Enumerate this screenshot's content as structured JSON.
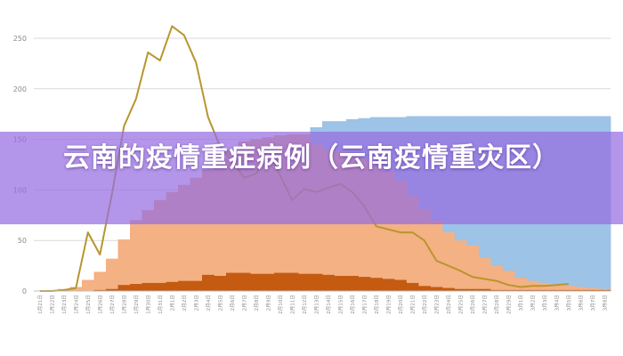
{
  "banner": {
    "title": "云南的疫情重症病例（云南疫情重灾区）"
  },
  "chart_data": {
    "type": "area",
    "title": "",
    "xlabel": "",
    "ylabel": "",
    "ylim": [
      0,
      250
    ],
    "yticks": [
      0,
      50,
      100,
      150,
      200,
      250
    ],
    "grid": true,
    "legend": "none",
    "categories": [
      "1月21日",
      "1月22日",
      "1月23日",
      "1月24日",
      "1月25日",
      "1月26日",
      "1月27日",
      "1月28日",
      "1月29日",
      "1月30日",
      "1月31日",
      "2月1日",
      "2月2日",
      "2月3日",
      "2月4日",
      "2月5日",
      "2月6日",
      "2月7日",
      "2月8日",
      "2月9日",
      "2月10日",
      "2月11日",
      "2月12日",
      "2月13日",
      "2月14日",
      "2月15日",
      "2月16日",
      "2月17日",
      "2月18日",
      "2月19日",
      "2月20日",
      "2月21日",
      "2月22日",
      "2月23日",
      "2月24日",
      "2月25日",
      "2月26日",
      "2月27日",
      "2月28日",
      "2月29日",
      "3月1日",
      "3月2日",
      "3月3日",
      "3月4日",
      "3月5日",
      "3月6日",
      "3月7日",
      "3月8日"
    ],
    "series": [
      {
        "type": "area",
        "color": "#9dc3e6",
        "values": [
          0,
          0,
          0,
          0,
          0,
          0,
          0,
          0,
          0,
          0,
          0,
          0,
          0,
          0,
          0,
          0,
          0,
          0,
          0,
          0,
          0,
          0,
          0,
          162,
          168,
          168,
          170,
          171,
          172,
          172,
          172,
          173,
          173,
          173,
          173,
          173,
          173,
          173,
          173,
          173,
          173,
          173,
          173,
          173,
          173,
          173,
          173,
          173
        ]
      },
      {
        "type": "area",
        "color": "#f4b183",
        "values": [
          0,
          1,
          2,
          4,
          11,
          19,
          32,
          51,
          70,
          80,
          90,
          98,
          105,
          112,
          120,
          131,
          140,
          148,
          150,
          152,
          154,
          155,
          155,
          145,
          140,
          138,
          135,
          131,
          126,
          118,
          109,
          94,
          81,
          70,
          58,
          50,
          45,
          33,
          25,
          20,
          13,
          10,
          8,
          6,
          5,
          4,
          3,
          2
        ]
      },
      {
        "type": "area",
        "color": "#c55a11",
        "values": [
          0,
          0,
          0,
          0,
          0,
          1,
          2,
          6,
          7,
          8,
          8,
          9,
          10,
          10,
          16,
          15,
          18,
          18,
          17,
          17,
          18,
          18,
          17,
          17,
          16,
          15,
          15,
          14,
          13,
          12,
          11,
          8,
          5,
          4,
          3,
          2,
          2,
          2,
          1,
          1,
          1,
          1,
          1,
          1,
          1,
          1,
          1,
          1
        ]
      },
      {
        "type": "line",
        "color": "#b8962e",
        "values": [
          0,
          0,
          1,
          3,
          58,
          36,
          96,
          163,
          190,
          236,
          228,
          262,
          253,
          226,
          172,
          143,
          128,
          112,
          116,
          141,
          114,
          90,
          101,
          98,
          102,
          106,
          98,
          84,
          64,
          61,
          58,
          58,
          50,
          30,
          25,
          20,
          14,
          12,
          10,
          6,
          4,
          5,
          5,
          6,
          7,
          null,
          null,
          null
        ]
      }
    ]
  }
}
